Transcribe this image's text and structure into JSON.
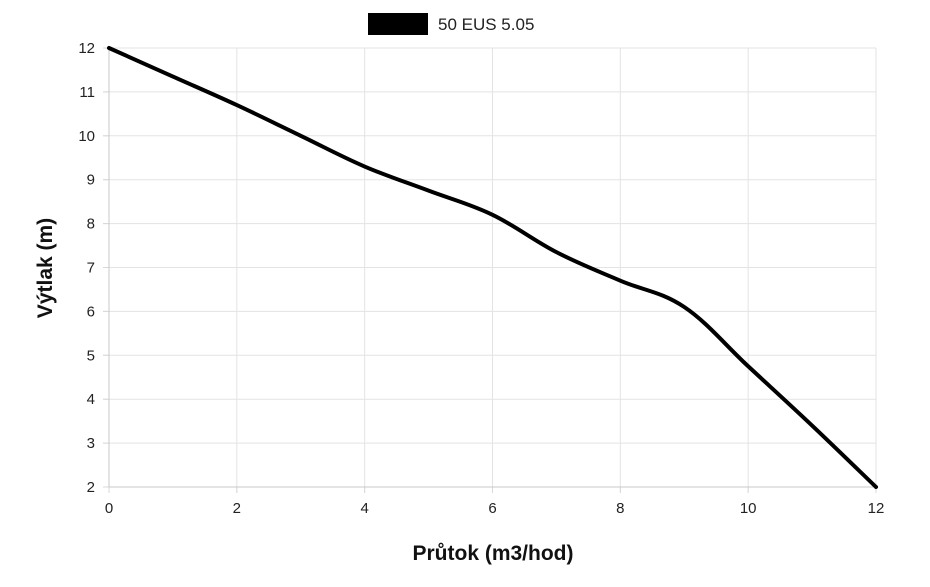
{
  "chart_data": {
    "type": "line",
    "title": "",
    "xlabel": "Průtok (m3/hod)",
    "ylabel": "Výtlak (m)",
    "xlim": [
      0,
      12
    ],
    "ylim": [
      2,
      12
    ],
    "x_ticks": [
      0,
      2,
      4,
      6,
      8,
      10,
      12
    ],
    "y_ticks": [
      2,
      3,
      4,
      5,
      6,
      7,
      8,
      9,
      10,
      11,
      12
    ],
    "grid": true,
    "legend_position": "top",
    "series": [
      {
        "name": "50 EUS 5.05",
        "color": "#000000",
        "x": [
          0,
          1,
          2,
          3,
          4,
          5,
          6,
          7,
          8,
          9,
          10,
          11,
          12
        ],
        "y": [
          12,
          11.35,
          10.7,
          10.0,
          9.3,
          8.75,
          8.2,
          7.35,
          6.7,
          6.1,
          4.75,
          3.4,
          2.0
        ]
      }
    ]
  }
}
